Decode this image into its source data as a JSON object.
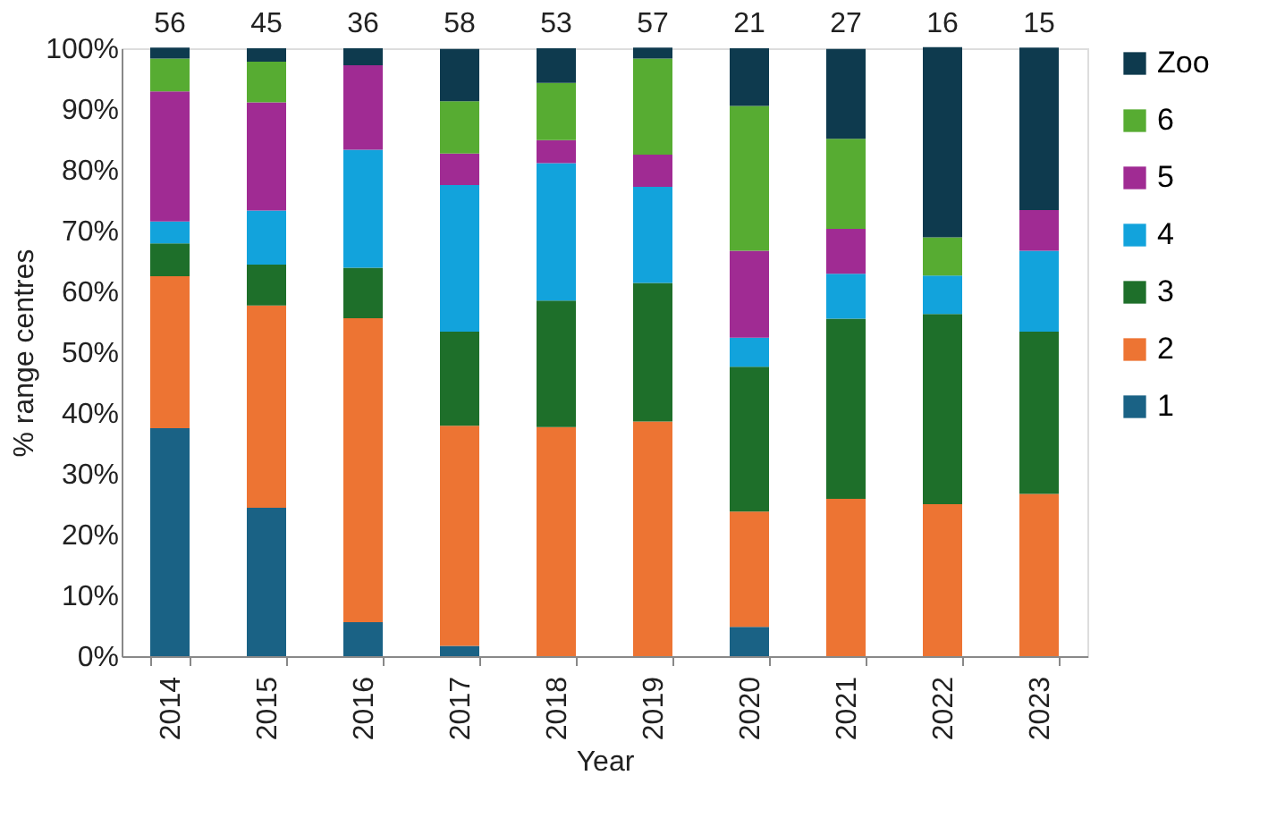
{
  "chart_data": {
    "type": "bar",
    "stacked": true,
    "xlabel": "Year",
    "ylabel": "% range centres",
    "categories": [
      "2014",
      "2015",
      "2016",
      "2017",
      "2018",
      "2019",
      "2020",
      "2021",
      "2022",
      "2023"
    ],
    "series": [
      {
        "name": "1",
        "color": "#1a6285",
        "values": [
          37.5,
          24.4,
          5.6,
          1.7,
          0,
          0,
          4.8,
          0,
          0,
          0
        ]
      },
      {
        "name": "2",
        "color": "#ed7433",
        "values": [
          25.0,
          33.3,
          50.0,
          36.2,
          37.7,
          38.6,
          19.0,
          25.9,
          25.0,
          26.7
        ]
      },
      {
        "name": "3",
        "color": "#1e6f2a",
        "values": [
          5.4,
          6.7,
          8.3,
          15.5,
          20.8,
          22.8,
          23.8,
          29.6,
          31.3,
          26.7
        ]
      },
      {
        "name": "4",
        "color": "#12a3dc",
        "values": [
          3.6,
          8.9,
          19.4,
          24.1,
          22.6,
          15.8,
          4.8,
          7.4,
          6.3,
          13.3
        ]
      },
      {
        "name": "5",
        "color": "#a02b93",
        "values": [
          21.4,
          17.8,
          13.9,
          5.2,
          3.8,
          5.3,
          14.3,
          7.4,
          0,
          6.7
        ]
      },
      {
        "name": "6",
        "color": "#57ac32",
        "values": [
          5.4,
          6.7,
          0,
          8.6,
          9.4,
          15.8,
          23.8,
          14.8,
          6.3,
          0
        ]
      },
      {
        "name": "Zoo",
        "color": "#0e3a4e",
        "values": [
          1.8,
          2.2,
          2.8,
          8.6,
          5.7,
          1.8,
          9.5,
          14.8,
          31.3,
          26.7
        ]
      }
    ],
    "annotations": [
      {
        "text": "56",
        "x": "2014",
        "y": 100
      },
      {
        "text": "45",
        "x": "2015",
        "y": 100
      },
      {
        "text": "36",
        "x": "2016",
        "y": 100
      },
      {
        "text": "58",
        "x": "2017",
        "y": 100
      },
      {
        "text": "53",
        "x": "2018",
        "y": 100
      },
      {
        "text": "57",
        "x": "2019",
        "y": 100
      },
      {
        "text": "21",
        "x": "2020",
        "y": 100
      },
      {
        "text": "27",
        "x": "2021",
        "y": 100
      },
      {
        "text": "16",
        "x": "2022",
        "y": 100
      },
      {
        "text": "15",
        "x": "2023",
        "y": 100
      }
    ],
    "ylim": [
      0,
      100
    ],
    "yticks": [
      {
        "value": 0,
        "label": "0%"
      },
      {
        "value": 10,
        "label": "10%"
      },
      {
        "value": 20,
        "label": "20%"
      },
      {
        "value": 30,
        "label": "30%"
      },
      {
        "value": 40,
        "label": "40%"
      },
      {
        "value": 50,
        "label": "50%"
      },
      {
        "value": 60,
        "label": "60%"
      },
      {
        "value": 70,
        "label": "70%"
      },
      {
        "value": 80,
        "label": "80%"
      },
      {
        "value": 90,
        "label": "90%"
      },
      {
        "value": 100,
        "label": "100%"
      }
    ],
    "grid": false,
    "legend": "right"
  }
}
